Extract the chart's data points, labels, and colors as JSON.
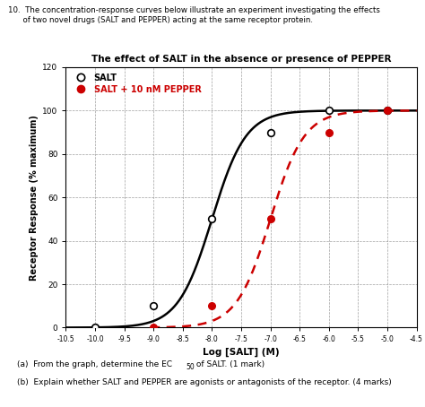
{
  "title": "The effect of SALT in the absence or presence of PEPPER",
  "xlabel": "Log [SALT] (M)",
  "ylabel": "Receptor Response (% maximum)",
  "xlim": [
    -10.5,
    -4.5
  ],
  "ylim": [
    0,
    120
  ],
  "xticks": [
    -10.5,
    -10.0,
    -9.5,
    -9.0,
    -8.5,
    -8.0,
    -7.5,
    -7.0,
    -6.5,
    -6.0,
    -5.5,
    -5.0,
    -4.5
  ],
  "xtick_labels": [
    "-10.5",
    "-10.0",
    "-9.5",
    "-9.0",
    "-8.5",
    "-8.0",
    "-7.5",
    "-7.0",
    "-6.5",
    "-6.0",
    "-5.5",
    "-5.0",
    "-4.5"
  ],
  "yticks": [
    0,
    20,
    40,
    60,
    80,
    100,
    120
  ],
  "salt_x": [
    -10.0,
    -9.0,
    -8.0,
    -7.0,
    -6.0,
    -5.0
  ],
  "salt_y": [
    0,
    10,
    50,
    90,
    100,
    100
  ],
  "pepper_x": [
    -9.0,
    -8.0,
    -7.0,
    -6.0,
    -5.0
  ],
  "pepper_y": [
    0,
    10,
    50,
    90,
    100
  ],
  "salt_ec50": -8.0,
  "pepper_ec50": -7.0,
  "salt_color": "#000000",
  "pepper_color": "#cc0000",
  "bg_color": "#ffffff",
  "grid_color": "#888888",
  "header_line1": "10.  The concentration-response curves below illustrate an experiment investigating the effects",
  "header_line2": "      of two novel drugs (SALT and PEPPER) acting at the same receptor protein.",
  "footer_a": "(a)  From the graph, determine the EC",
  "footer_a_sub": "50",
  "footer_a_rest": " of SALT. (1 mark)",
  "footer_b": "(b)  Explain whether SALT and PEPPER are agonists or antagonists of the receptor. (4 marks)"
}
